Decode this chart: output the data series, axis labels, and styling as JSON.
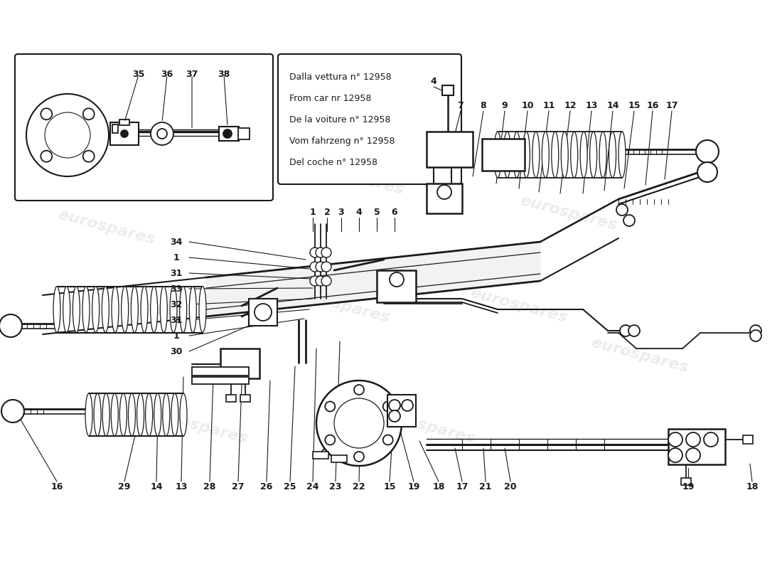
{
  "bg_color": "#ffffff",
  "line_color": "#1a1a1a",
  "watermark_color": "#d0d0d0",
  "watermark_text": "eurospares",
  "note_lines": [
    "Dalla vettura n° 12958",
    "From car nr 12958",
    "De la voiture n° 12958",
    "Vom fahrzeng n° 12958",
    "Del coche n° 12958"
  ]
}
